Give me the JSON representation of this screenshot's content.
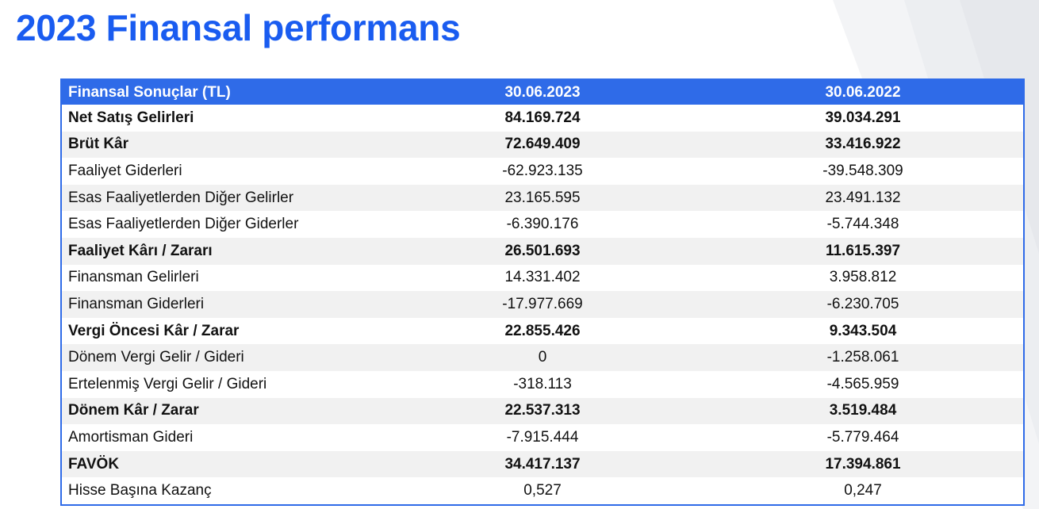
{
  "title": "2023 Finansal performans",
  "table": {
    "headers": [
      "Finansal Sonuçlar (TL)",
      "30.06.2023",
      "30.06.2022"
    ],
    "rows": [
      {
        "label": "Net Satış Gelirleri",
        "v2023": "84.169.724",
        "v2022": "39.034.291",
        "bold": true
      },
      {
        "label": "Brüt Kâr",
        "v2023": "72.649.409",
        "v2022": "33.416.922",
        "bold": true
      },
      {
        "label": "Faaliyet Giderleri",
        "v2023": "-62.923.135",
        "v2022": "-39.548.309",
        "bold": false
      },
      {
        "label": "Esas Faaliyetlerden Diğer Gelirler",
        "v2023": "23.165.595",
        "v2022": "23.491.132",
        "bold": false
      },
      {
        "label": "Esas Faaliyetlerden Diğer Giderler",
        "v2023": "-6.390.176",
        "v2022": "-5.744.348",
        "bold": false
      },
      {
        "label": "Faaliyet Kârı / Zararı",
        "v2023": "26.501.693",
        "v2022": "11.615.397",
        "bold": true
      },
      {
        "label": "Finansman Gelirleri",
        "v2023": "14.331.402",
        "v2022": "3.958.812",
        "bold": false
      },
      {
        "label": "Finansman Giderleri",
        "v2023": "-17.977.669",
        "v2022": "-6.230.705",
        "bold": false
      },
      {
        "label": "Vergi Öncesi Kâr / Zarar",
        "v2023": "22.855.426",
        "v2022": "9.343.504",
        "bold": true
      },
      {
        "label": "Dönem Vergi Gelir / Gideri",
        "v2023": "0",
        "v2022": "-1.258.061",
        "bold": false
      },
      {
        "label": "Ertelenmiş Vergi Gelir / Gideri",
        "v2023": "-318.113",
        "v2022": "-4.565.959",
        "bold": false
      },
      {
        "label": "Dönem Kâr / Zarar",
        "v2023": "22.537.313",
        "v2022": "3.519.484",
        "bold": true
      },
      {
        "label": "Amortisman Gideri",
        "v2023": "-7.915.444",
        "v2022": "-5.779.464",
        "bold": false
      },
      {
        "label": "FAVÖK",
        "v2023": "34.417.137",
        "v2022": "17.394.861",
        "bold": true
      },
      {
        "label": "Hisse Başına Kazanç",
        "v2023": "0,527",
        "v2022": "0,247",
        "bold": false
      }
    ]
  },
  "colors": {
    "title": "#1a5cf0",
    "header_bg": "#2f6be8",
    "stripe": "#f1f1f1"
  }
}
